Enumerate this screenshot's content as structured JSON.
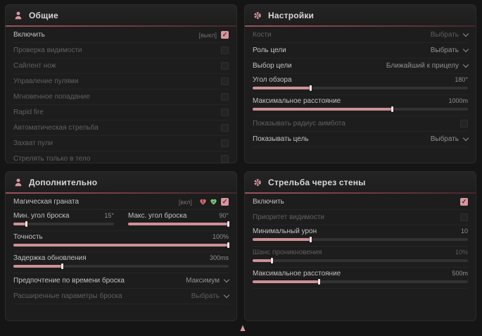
{
  "colors": {
    "accent": "#cd9096",
    "handle": "#f3e5e6",
    "checkbox_checked": "#d7969d",
    "danger_heart": "#d96a73",
    "green_heart": "#7cc47f",
    "header_line": "#9a545a"
  },
  "panels": {
    "general": {
      "title": "Общие",
      "icon": "person-icon",
      "rows": [
        {
          "type": "check",
          "name": "enable",
          "label": "Включить",
          "hint": "[выкл]",
          "checked": true,
          "dim": false
        },
        {
          "type": "check",
          "name": "visibility-check",
          "label": "Проверка видимости",
          "checked": false,
          "dim": true
        },
        {
          "type": "check",
          "name": "silent-knife",
          "label": "Сайлент нож",
          "checked": false,
          "dim": true
        },
        {
          "type": "check",
          "name": "bullet-control",
          "label": "Управление пулями",
          "checked": false,
          "dim": true
        },
        {
          "type": "check",
          "name": "instant-hit",
          "label": "Мгновенное попадание",
          "checked": false,
          "dim": true
        },
        {
          "type": "check",
          "name": "rapid-fire",
          "label": "Rapid fire",
          "checked": false,
          "dim": true
        },
        {
          "type": "check",
          "name": "auto-fire",
          "label": "Автоматическая стрельба",
          "checked": false,
          "dim": true
        },
        {
          "type": "check",
          "name": "bullet-capture",
          "label": "Захват пули",
          "checked": false,
          "dim": true
        },
        {
          "type": "check",
          "name": "body-only",
          "label": "Стрелять только в тело",
          "checked": false,
          "dim": true
        }
      ]
    },
    "settings": {
      "title": "Настройки",
      "icon": "gear-icon",
      "rows": [
        {
          "type": "select",
          "name": "bones",
          "label": "Кости",
          "value": "Выбрать",
          "dim": true
        },
        {
          "type": "select",
          "name": "target-role",
          "label": "Роль цели",
          "value": "Выбрать",
          "dim": false
        },
        {
          "type": "select",
          "name": "target-selection",
          "label": "Выбор цели",
          "value": "Ближайший к прицелу",
          "dim": false
        },
        {
          "type": "slider",
          "name": "fov",
          "label": "Угол обзора",
          "value": "180°",
          "pct": 27,
          "dim": false
        },
        {
          "type": "slider",
          "name": "max-distance",
          "label": "Максимальное расстояние",
          "value": "1000m",
          "pct": 65,
          "dim": false
        },
        {
          "type": "check",
          "name": "show-aimbot-radius",
          "label": "Показывать радиус аимбота",
          "checked": false,
          "dim": true
        },
        {
          "type": "select",
          "name": "show-target",
          "label": "Показывать цель",
          "value": "Выбрать",
          "dim": false
        }
      ]
    },
    "additional": {
      "title": "Дополнительно",
      "icon": "person-icon",
      "rows": [
        {
          "type": "magic",
          "name": "magic-grenade",
          "label": "Магическая граната",
          "hint": "[вкл]",
          "icons": [
            "broken-heart-icon",
            "green-heart-icon"
          ],
          "checked": true,
          "dim": false
        },
        {
          "type": "dual",
          "name": "throw-angles",
          "sliders": [
            {
              "label": "Мин. угол броска",
              "value": "15°",
              "pct": 13
            },
            {
              "label": "Макс. угол броска",
              "value": "90°",
              "pct": 100
            }
          ]
        },
        {
          "type": "slider",
          "name": "accuracy",
          "label": "Точность",
          "value": "100%",
          "pct": 100,
          "dim": false
        },
        {
          "type": "slider",
          "name": "update-delay",
          "label": "Задержка обновления",
          "value": "300ms",
          "pct": 23,
          "dim": false
        },
        {
          "type": "select",
          "name": "throw-time-preference",
          "label": "Предпочтение по времени броска",
          "value": "Максимум",
          "dim": false
        },
        {
          "type": "select",
          "name": "advanced-throw-params",
          "label": "Расширенные параметры броска",
          "value": "Выбрать",
          "dim": true
        }
      ]
    },
    "wallbang": {
      "title": "Стрельба через стены",
      "icon": "gear-icon",
      "rows": [
        {
          "type": "check",
          "name": "enable",
          "label": "Включить",
          "checked": true,
          "dim": false
        },
        {
          "type": "check",
          "name": "visibility-priority",
          "label": "Приоритет видимости",
          "checked": false,
          "dim": true
        },
        {
          "type": "slider",
          "name": "min-damage",
          "label": "Минимальный урон",
          "value": "10",
          "pct": 27,
          "dim": false
        },
        {
          "type": "slider",
          "name": "penetration-chance",
          "label": "Шанс проникновения",
          "value": "10%",
          "pct": 9,
          "dim": true
        },
        {
          "type": "slider",
          "name": "max-distance",
          "label": "Максимальное расстояние",
          "value": "500m",
          "pct": 31,
          "dim": false
        }
      ]
    }
  },
  "footer": {
    "marker_icon": "cursor-marker-icon"
  }
}
